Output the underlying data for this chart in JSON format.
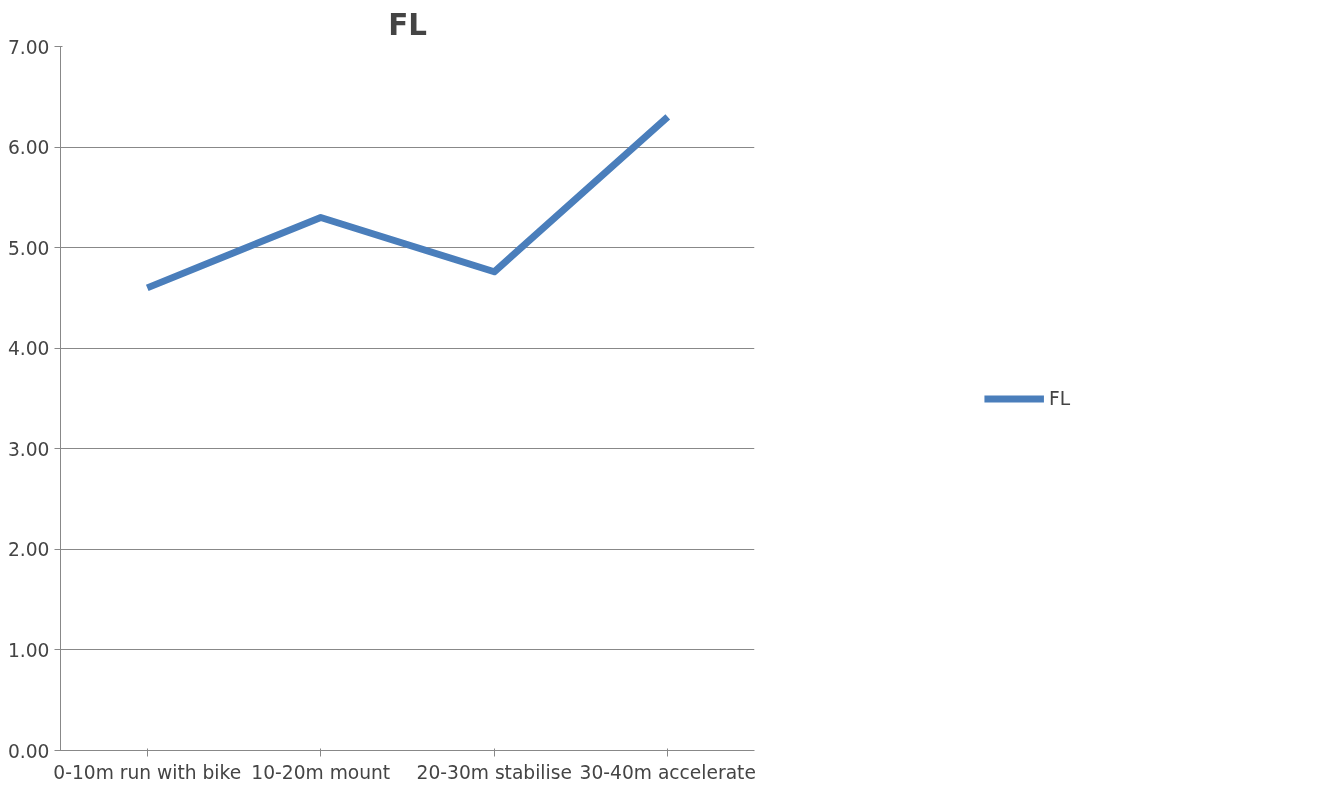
{
  "chart_data": {
    "type": "line",
    "title": "FL",
    "categories": [
      "0-10m run with bike",
      "10-20m mount",
      "20-30m stabilise",
      "30-40m accelerate"
    ],
    "series": [
      {
        "name": "FL",
        "color": "#4a7ebb",
        "values": [
          4.6,
          5.3,
          4.76,
          6.3
        ]
      }
    ],
    "ylim": [
      0,
      7
    ],
    "yticks": [
      {
        "value": 0,
        "label": "0.00"
      },
      {
        "value": 1,
        "label": "1.00"
      },
      {
        "value": 2,
        "label": "2.00"
      },
      {
        "value": 3,
        "label": "3.00"
      },
      {
        "value": 4,
        "label": "4.00"
      },
      {
        "value": 5,
        "label": "5.00"
      },
      {
        "value": 6,
        "label": "6.00"
      },
      {
        "value": 7,
        "label": "7.00"
      }
    ],
    "grid": "y",
    "legend": "right",
    "marker": "none",
    "line_style": "solid"
  }
}
